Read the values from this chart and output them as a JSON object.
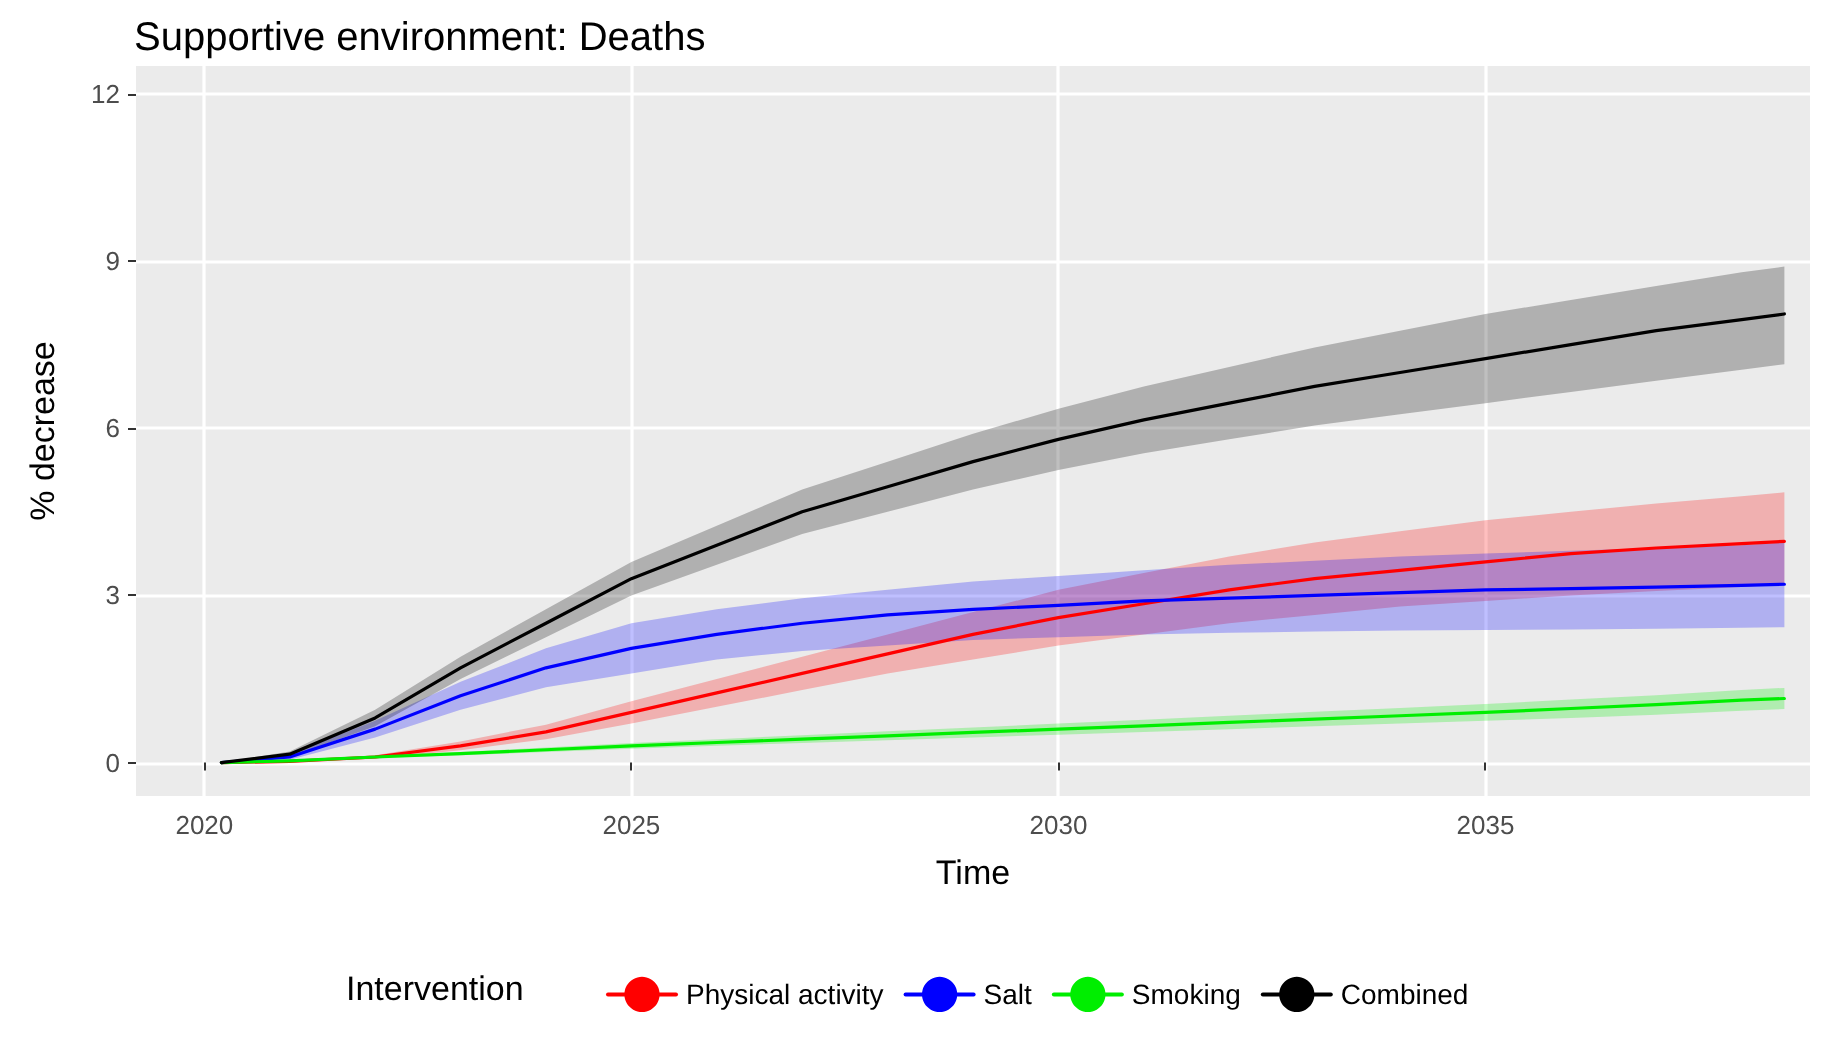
{
  "chart_data": {
    "type": "line",
    "title": "Supportive environment: Deaths",
    "xlabel": "Time",
    "ylabel": "% decrease",
    "legend_title": "Intervention",
    "x": [
      2020.2,
      2021,
      2022,
      2023,
      2024,
      2025,
      2026,
      2027,
      2028,
      2029,
      2030,
      2031,
      2032,
      2033,
      2034,
      2035,
      2036,
      2037,
      2038,
      2038.5
    ],
    "xlim": [
      2019.2,
      2038.8
    ],
    "xticks": [
      2020,
      2025,
      2030,
      2035
    ],
    "ylim": [
      -0.6,
      12.5
    ],
    "yticks": [
      0,
      3,
      6,
      9,
      12
    ],
    "grid": true,
    "legend": "bottom",
    "marker": "none",
    "line_style": "solid",
    "series": [
      {
        "name": "Physical activity",
        "color": "#ff0000",
        "values": [
          0,
          0.02,
          0.1,
          0.3,
          0.55,
          0.9,
          1.25,
          1.6,
          1.95,
          2.3,
          2.6,
          2.85,
          3.1,
          3.3,
          3.45,
          3.6,
          3.75,
          3.85,
          3.93,
          3.97
        ],
        "lower": [
          0,
          0.01,
          0.07,
          0.22,
          0.42,
          0.7,
          1.0,
          1.3,
          1.6,
          1.85,
          2.1,
          2.3,
          2.5,
          2.65,
          2.8,
          2.9,
          3.0,
          3.08,
          3.15,
          3.2
        ],
        "upper": [
          0,
          0.03,
          0.13,
          0.38,
          0.68,
          1.1,
          1.5,
          1.9,
          2.3,
          2.7,
          3.1,
          3.4,
          3.7,
          3.95,
          4.15,
          4.35,
          4.5,
          4.65,
          4.78,
          4.85
        ]
      },
      {
        "name": "Salt",
        "color": "#0000ff",
        "values": [
          0,
          0.1,
          0.6,
          1.2,
          1.7,
          2.05,
          2.3,
          2.5,
          2.65,
          2.75,
          2.82,
          2.9,
          2.95,
          3.0,
          3.05,
          3.1,
          3.12,
          3.15,
          3.18,
          3.2
        ],
        "lower": [
          0,
          0.05,
          0.45,
          0.95,
          1.35,
          1.6,
          1.85,
          2.0,
          2.1,
          2.2,
          2.25,
          2.3,
          2.33,
          2.35,
          2.37,
          2.38,
          2.39,
          2.4,
          2.42,
          2.43
        ],
        "upper": [
          0,
          0.15,
          0.75,
          1.45,
          2.05,
          2.5,
          2.75,
          2.95,
          3.1,
          3.25,
          3.35,
          3.45,
          3.55,
          3.62,
          3.7,
          3.75,
          3.8,
          3.85,
          3.9,
          3.95
        ]
      },
      {
        "name": "Smoking",
        "color": "#00ee00",
        "values": [
          0,
          0.03,
          0.1,
          0.16,
          0.23,
          0.3,
          0.36,
          0.42,
          0.48,
          0.54,
          0.6,
          0.66,
          0.72,
          0.78,
          0.84,
          0.9,
          0.97,
          1.04,
          1.12,
          1.15
        ],
        "lower": [
          0,
          0.02,
          0.08,
          0.13,
          0.19,
          0.25,
          0.3,
          0.35,
          0.4,
          0.45,
          0.5,
          0.55,
          0.6,
          0.65,
          0.7,
          0.75,
          0.8,
          0.86,
          0.93,
          0.96
        ],
        "upper": [
          0,
          0.04,
          0.12,
          0.19,
          0.27,
          0.35,
          0.42,
          0.49,
          0.56,
          0.63,
          0.7,
          0.77,
          0.84,
          0.91,
          0.98,
          1.05,
          1.13,
          1.21,
          1.3,
          1.34
        ]
      },
      {
        "name": "Combined",
        "color": "#000000",
        "values": [
          0,
          0.15,
          0.8,
          1.7,
          2.5,
          3.3,
          3.9,
          4.5,
          4.95,
          5.4,
          5.8,
          6.15,
          6.45,
          6.75,
          7.0,
          7.25,
          7.5,
          7.75,
          7.95,
          8.05
        ],
        "lower": [
          0,
          0.1,
          0.65,
          1.5,
          2.25,
          3.0,
          3.55,
          4.1,
          4.5,
          4.9,
          5.25,
          5.55,
          5.8,
          6.05,
          6.25,
          6.45,
          6.65,
          6.85,
          7.05,
          7.15
        ],
        "upper": [
          0,
          0.2,
          0.95,
          1.9,
          2.75,
          3.6,
          4.25,
          4.9,
          5.4,
          5.9,
          6.35,
          6.75,
          7.1,
          7.45,
          7.75,
          8.05,
          8.3,
          8.55,
          8.8,
          8.9
        ]
      }
    ]
  }
}
